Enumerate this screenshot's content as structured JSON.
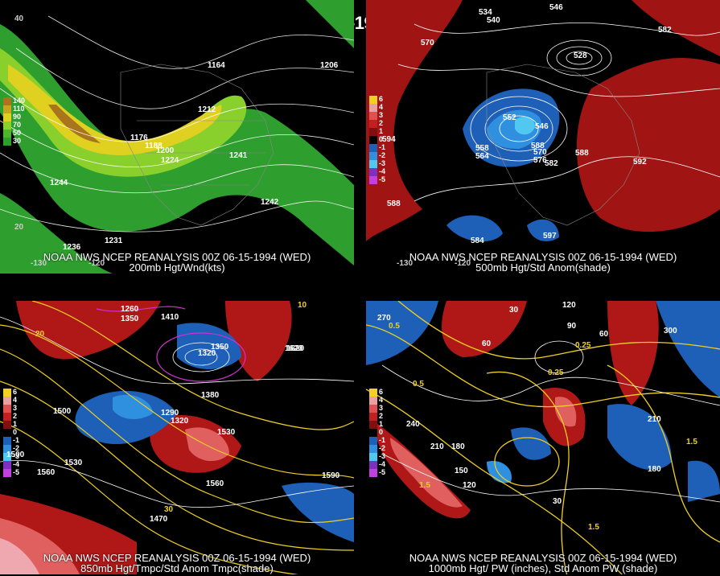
{
  "header": {
    "title": "00Z 06-15-1994 (WED)"
  },
  "panels": [
    {
      "caption1": "NOAA NWS NCEP REANALYSIS 00Z 06-15-1994 (WED)",
      "caption2": "200mb Hgt/Wnd(kts)",
      "legend": [
        "140",
        "110",
        "90",
        "70",
        "50",
        "30"
      ],
      "labels": [
        "1164",
        "1212",
        "1176",
        "1188",
        "1200",
        "1224",
        "1236",
        "1231",
        "1244",
        "1206",
        "1242",
        "1241",
        "-130",
        "-120",
        "20",
        "40"
      ]
    },
    {
      "caption1": "NOAA NWS NCEP REANALYSIS 00Z 06-15-1994 (WED)",
      "caption2": "500mb Hgt/Std Anom(shade)",
      "legend": [
        "6",
        "4",
        "3",
        "2",
        "1",
        "0",
        "-1",
        "-2",
        "-3",
        "-4",
        "-5"
      ],
      "labels": [
        "534",
        "540",
        "546",
        "570",
        "582",
        "552",
        "546",
        "558",
        "564",
        "570",
        "576",
        "582",
        "588",
        "588",
        "592",
        "594",
        "597",
        "588",
        "584",
        "528",
        "-130",
        "-120"
      ]
    },
    {
      "caption1": "NOAA NWS NCEP REANALYSIS 00Z 06-15-1994 (WED)",
      "caption2": "850mb Hgt/Tmpc/Std Anom Tmpc(shade)",
      "legend": [
        "6",
        "4",
        "3",
        "2",
        "1",
        "0",
        "-1",
        "-2",
        "-3",
        "-4",
        "-5"
      ],
      "labels": [
        "1260",
        "1350",
        "1410",
        "1320",
        "1350",
        "1620",
        "1380",
        "1500",
        "1530",
        "1560",
        "1590",
        "1470",
        "1560",
        "1500",
        "1620",
        "1530",
        "1290",
        "1320",
        "10",
        "20",
        "30"
      ]
    },
    {
      "caption1": "NOAA NWS NCEP REANALYSIS 00Z 06-15-1994 (WED)",
      "caption2": "1000mb Hgt/ PW (inches), Std Anom PW (shade)",
      "legend": [
        "6",
        "4",
        "3",
        "2",
        "1",
        "0",
        "-1",
        "-2",
        "-3",
        "-4",
        "-5"
      ],
      "labels": [
        "270",
        "0.5",
        "120",
        "60",
        "0.25",
        "300",
        "240",
        "210",
        "180",
        "150",
        "120",
        "0.5",
        "0.25",
        "1.5",
        "1.5",
        "210",
        "180",
        "1.5",
        "60",
        "30",
        "90",
        "30"
      ]
    }
  ]
}
